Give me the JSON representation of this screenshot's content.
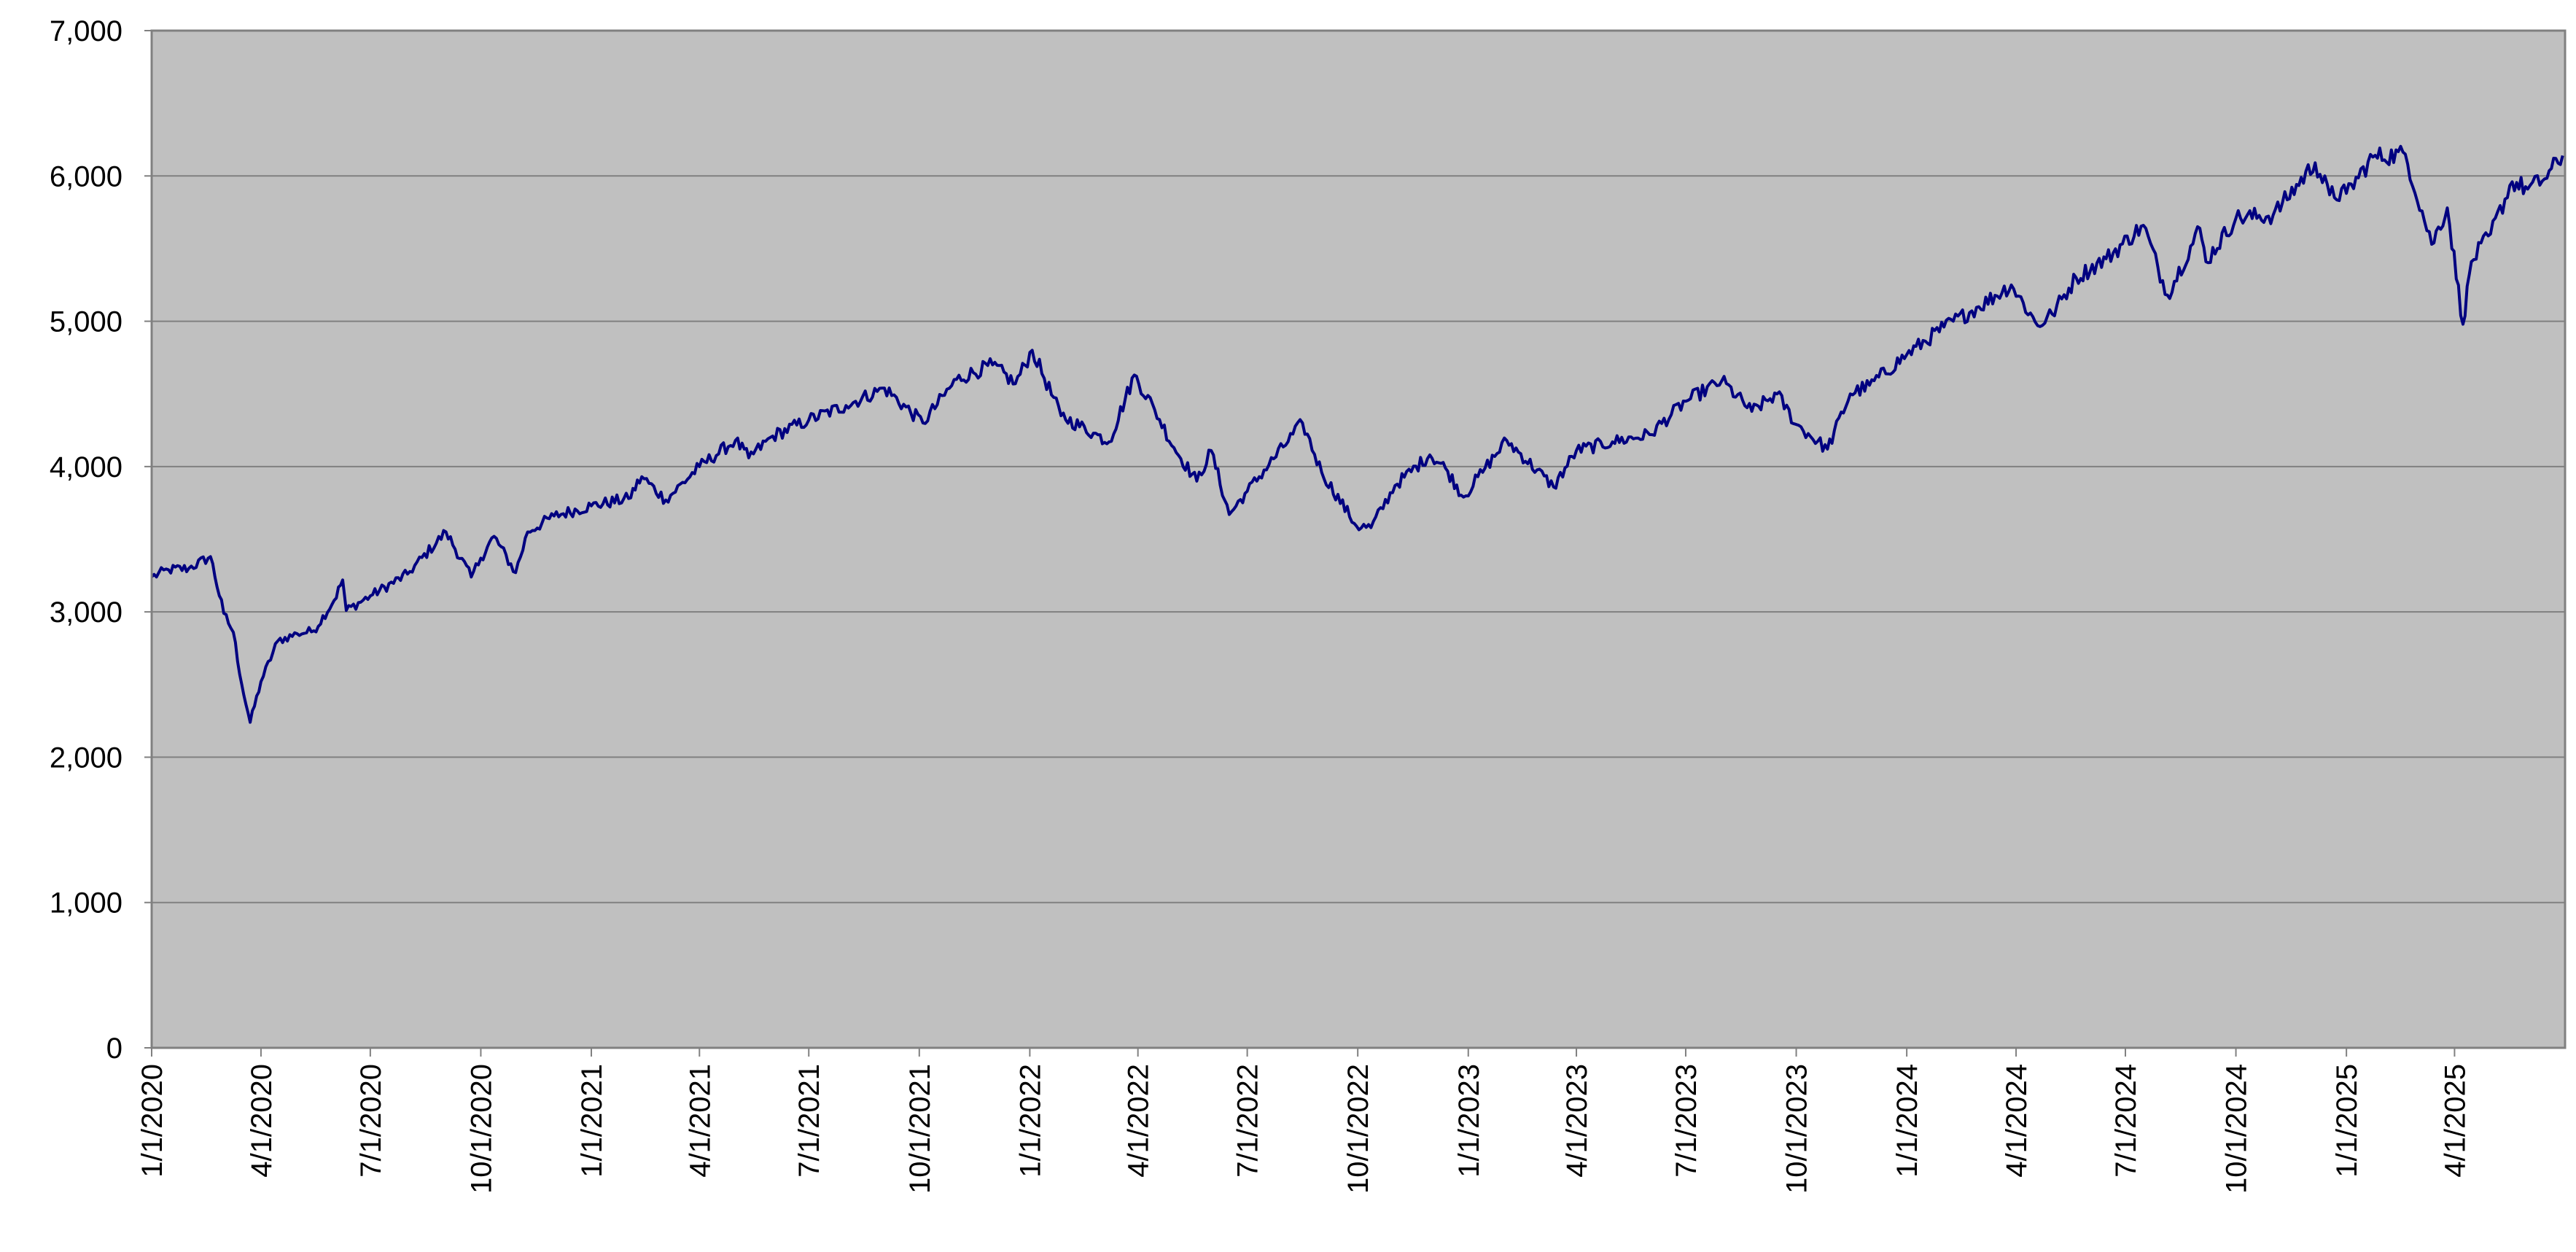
{
  "chart_data": {
    "type": "line",
    "title": "",
    "xlabel": "",
    "ylabel": "",
    "ylim": [
      0,
      7000
    ],
    "xlim": [
      "2020-01-01",
      "2025-07-02"
    ],
    "y_ticks": [
      0,
      1000,
      2000,
      3000,
      4000,
      5000,
      6000,
      7000
    ],
    "y_tick_labels": [
      "0",
      "1,000",
      "2,000",
      "3,000",
      "4,000",
      "5,000",
      "6,000",
      "7,000"
    ],
    "x_tick_labels": [
      "1/1/2020",
      "4/1/2020",
      "7/1/2020",
      "10/1/2020",
      "1/1/2021",
      "4/1/2021",
      "7/1/2021",
      "10/1/2021",
      "1/1/2022",
      "4/1/2022",
      "7/1/2022",
      "10/1/2022",
      "1/1/2023",
      "4/1/2023",
      "7/1/2023",
      "10/1/2023",
      "1/1/2024",
      "4/1/2024",
      "7/1/2024",
      "10/1/2024",
      "1/1/2025",
      "4/1/2025"
    ],
    "x_tick_dates": [
      "2020-01-01",
      "2020-04-01",
      "2020-07-01",
      "2020-10-01",
      "2021-01-01",
      "2021-04-01",
      "2021-07-01",
      "2021-10-01",
      "2022-01-01",
      "2022-04-01",
      "2022-07-01",
      "2022-10-01",
      "2023-01-01",
      "2023-04-01",
      "2023-07-01",
      "2023-10-01",
      "2024-01-01",
      "2024-04-01",
      "2024-07-01",
      "2024-10-01",
      "2025-01-01",
      "2025-04-01"
    ],
    "grid": true,
    "legend": "none",
    "colors": {
      "plot_background": "#c0c0c0",
      "line": "#000080",
      "gridline": "#808080",
      "axis": "#808080"
    },
    "series": [
      {
        "x": [
          "2020-01-01",
          "2020-01-15",
          "2020-02-01",
          "2020-02-19",
          "2020-03-01",
          "2020-03-09",
          "2020-03-16",
          "2020-03-23",
          "2020-04-01",
          "2020-04-15",
          "2020-05-01",
          "2020-05-15",
          "2020-06-01",
          "2020-06-08",
          "2020-06-11",
          "2020-07-01",
          "2020-08-01",
          "2020-09-02",
          "2020-09-23",
          "2020-10-01",
          "2020-10-12",
          "2020-10-30",
          "2020-11-09",
          "2020-12-01",
          "2021-01-01",
          "2021-02-01",
          "2021-02-12",
          "2021-03-04",
          "2021-04-01",
          "2021-05-01",
          "2021-05-12",
          "2021-06-01",
          "2021-07-01",
          "2021-08-01",
          "2021-09-02",
          "2021-10-04",
          "2021-11-01",
          "2021-12-01",
          "2021-12-20",
          "2022-01-03",
          "2022-01-27",
          "2022-02-23",
          "2022-03-08",
          "2022-03-29",
          "2022-04-15",
          "2022-05-01",
          "2022-05-20",
          "2022-06-01",
          "2022-06-16",
          "2022-07-01",
          "2022-08-16",
          "2022-09-01",
          "2022-09-30",
          "2022-10-12",
          "2022-11-01",
          "2022-11-30",
          "2022-12-13",
          "2022-12-28",
          "2023-01-15",
          "2023-02-02",
          "2023-03-13",
          "2023-04-01",
          "2023-05-01",
          "2023-06-01",
          "2023-07-01",
          "2023-07-31",
          "2023-08-25",
          "2023-09-15",
          "2023-10-01",
          "2023-10-27",
          "2023-11-15",
          "2023-12-01",
          "2024-01-01",
          "2024-02-01",
          "2024-03-01",
          "2024-03-28",
          "2024-04-19",
          "2024-05-01",
          "2024-05-21",
          "2024-06-15",
          "2024-07-16",
          "2024-08-05",
          "2024-09-01",
          "2024-09-06",
          "2024-10-01",
          "2024-11-01",
          "2024-12-06",
          "2024-12-18",
          "2025-01-01",
          "2025-01-23",
          "2025-02-19",
          "2025-03-13",
          "2025-03-26",
          "2025-04-08",
          "2025-04-15",
          "2025-05-01",
          "2025-05-19",
          "2025-06-01",
          "2025-06-15",
          "2025-06-30"
        ],
        "y": [
          3240,
          3290,
          3300,
          3380,
          2990,
          2860,
          2500,
          2240,
          2520,
          2800,
          2850,
          2870,
          3080,
          3220,
          3010,
          3110,
          3260,
          3550,
          3240,
          3370,
          3520,
          3270,
          3550,
          3660,
          3730,
          3780,
          3930,
          3770,
          4000,
          4180,
          4060,
          4210,
          4320,
          4420,
          4540,
          4300,
          4600,
          4700,
          4570,
          4800,
          4350,
          4230,
          4170,
          4630,
          4390,
          4130,
          3900,
          4110,
          3670,
          3830,
          4300,
          3960,
          3590,
          3580,
          3870,
          4080,
          3990,
          3790,
          3990,
          4180,
          3860,
          4110,
          4170,
          4220,
          4450,
          4590,
          4380,
          4500,
          4290,
          4120,
          4500,
          4560,
          4770,
          4960,
          5100,
          5250,
          4970,
          5050,
          5300,
          5430,
          5660,
          5180,
          5640,
          5410,
          5710,
          5730,
          6090,
          5870,
          5880,
          6130,
          6150,
          5530,
          5780,
          4980,
          5410,
          5600,
          5960,
          5910,
          5980,
          6140
        ]
      }
    ]
  }
}
